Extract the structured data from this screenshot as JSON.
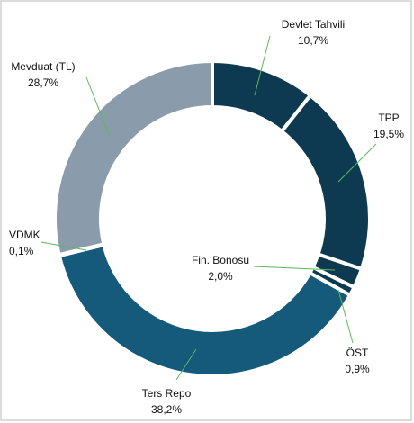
{
  "chart_data": {
    "type": "pie",
    "donut": true,
    "categories": [
      "Devlet Tahvili",
      "TPP",
      "Fin. Bonosu",
      "ÖST",
      "Ters Repo",
      "VDMK",
      "Mevduat (TL)"
    ],
    "values": [
      10.7,
      19.5,
      2.0,
      0.9,
      38.2,
      0.1,
      28.7
    ],
    "value_labels": [
      "10,7%",
      "19,5%",
      "2,0%",
      "0,9%",
      "38,2%",
      "0,1%",
      "28,7%"
    ],
    "colors": [
      "#0d3a50",
      "#0d3a50",
      "#0d3a50",
      "#0d3a50",
      "#165a7b",
      "#165a7b",
      "#8a9bab"
    ]
  }
}
